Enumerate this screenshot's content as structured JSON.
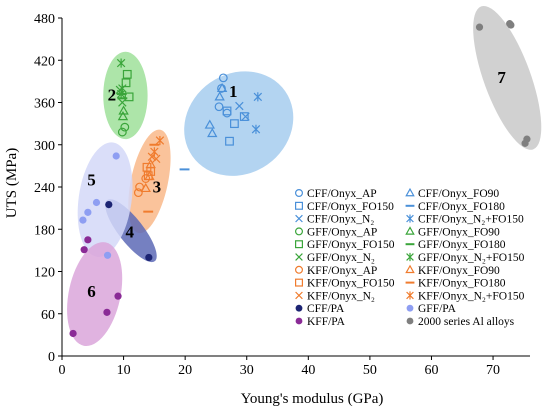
{
  "chart_data": {
    "type": "scatter",
    "xlabel": "Young's modulus (GPa)",
    "ylabel": "UTS (MPa)",
    "xlim": [
      0,
      76
    ],
    "ylim": [
      0,
      480
    ],
    "xticks": [
      0,
      10,
      20,
      30,
      40,
      50,
      60,
      70
    ],
    "yticks": [
      0,
      60,
      120,
      180,
      240,
      300,
      360,
      420,
      480
    ],
    "grid": false,
    "legend_position": "bottom-right",
    "regions": [
      {
        "label": "1",
        "cx": 28.7,
        "cy": 330,
        "rx": 9.2,
        "ry": 71,
        "rot": -35,
        "fill": "#a6cdee"
      },
      {
        "label": "2",
        "cx": 10.3,
        "cy": 370,
        "rx": 3.6,
        "ry": 62,
        "rot": 0,
        "fill": "#9fe09a"
      },
      {
        "label": "3",
        "cx": 14.2,
        "cy": 248,
        "rx": 3.0,
        "ry": 75,
        "rot": 12,
        "fill": "#f9b88a"
      },
      {
        "label": "4",
        "cx": 11.2,
        "cy": 178,
        "rx": 2.0,
        "ry": 55,
        "rot": -38,
        "fill": "#5d6ab6"
      },
      {
        "label": "5",
        "cx": 7.0,
        "cy": 222,
        "rx": 4.3,
        "ry": 82,
        "rot": 8,
        "fill": "#d4d8f8"
      },
      {
        "label": "6",
        "cx": 5.3,
        "cy": 88,
        "rx": 4.2,
        "ry": 75,
        "rot": 12,
        "fill": "#dba6da"
      },
      {
        "label": "7",
        "cx": 72.3,
        "cy": 395,
        "rx": 3.8,
        "ry": 108,
        "rot": -20,
        "fill": "#c9c9c9"
      }
    ],
    "region_labels": [
      {
        "text": "1",
        "x": 27.8,
        "y": 368
      },
      {
        "text": "2",
        "x": 8.1,
        "y": 363
      },
      {
        "text": "3",
        "x": 15.4,
        "y": 232
      },
      {
        "text": "4",
        "x": 11.0,
        "y": 168
      },
      {
        "text": "5",
        "x": 4.8,
        "y": 242
      },
      {
        "text": "6",
        "x": 4.8,
        "y": 84
      },
      {
        "text": "7",
        "x": 71.4,
        "y": 388
      }
    ],
    "series": [
      {
        "name": "CFF/Onyx_AP",
        "color": "#4a90d9",
        "marker": "circle",
        "points": [
          [
            25.5,
            354
          ],
          [
            26.2,
            395
          ],
          [
            26.8,
            345
          ],
          [
            25.9,
            380
          ]
        ]
      },
      {
        "name": "CFF/Onyx_FO90",
        "color": "#4a90d9",
        "marker": "triangle",
        "points": [
          [
            24.0,
            328
          ],
          [
            24.4,
            316
          ],
          [
            25.6,
            368
          ],
          [
            26.0,
            380
          ]
        ]
      },
      {
        "name": "CFF/Onyx_FO150",
        "color": "#4a90d9",
        "marker": "square",
        "points": [
          [
            26.8,
            348
          ],
          [
            27.2,
            305
          ],
          [
            28.0,
            330
          ],
          [
            29.6,
            340
          ]
        ]
      },
      {
        "name": "CFF/Onyx_FO180",
        "color": "#4a90d9",
        "marker": "dash",
        "points": [
          [
            19.9,
            265
          ]
        ]
      },
      {
        "name": "CFF/Onyx_N₂",
        "color": "#4a90d9",
        "marker": "x",
        "points": [
          [
            28.8,
            355
          ],
          [
            29.8,
            340
          ]
        ]
      },
      {
        "name": "CFF/Onyx_N₂+FO150",
        "color": "#4a90d9",
        "marker": "star",
        "points": [
          [
            31.8,
            368
          ],
          [
            31.5,
            322
          ]
        ]
      },
      {
        "name": "GFF/Onyx_AP",
        "color": "#3aa53a",
        "marker": "circle",
        "points": [
          [
            9.8,
            318
          ],
          [
            10.2,
            325
          ]
        ]
      },
      {
        "name": "GFF/Onyx_FO90",
        "color": "#3aa53a",
        "marker": "triangle",
        "points": [
          [
            9.9,
            340
          ],
          [
            10.0,
            348
          ]
        ]
      },
      {
        "name": "GFF/Onyx_FO150",
        "color": "#3aa53a",
        "marker": "square",
        "points": [
          [
            10.6,
            400
          ],
          [
            10.9,
            368
          ],
          [
            10.4,
            388
          ]
        ]
      },
      {
        "name": "GFF/Onyx_FO180",
        "color": "#3aa53a",
        "marker": "dash",
        "points": [
          [
            9.7,
            372
          ],
          [
            9.8,
            366
          ]
        ]
      },
      {
        "name": "GFF/Onyx_N₂",
        "color": "#3aa53a",
        "marker": "x",
        "points": [
          [
            9.4,
            378
          ],
          [
            9.8,
            360
          ]
        ]
      },
      {
        "name": "GFF/Onyx_N₂+FO150",
        "color": "#3aa53a",
        "marker": "star",
        "points": [
          [
            9.6,
            416
          ],
          [
            9.8,
            380
          ],
          [
            9.6,
            372
          ]
        ]
      },
      {
        "name": "KFF/Onyx_AP",
        "color": "#f07c2e",
        "marker": "circle",
        "points": [
          [
            12.4,
            232
          ],
          [
            12.6,
            240
          ],
          [
            13.6,
            252
          ]
        ]
      },
      {
        "name": "KFF/Onyx_FO90",
        "color": "#f07c2e",
        "marker": "triangle",
        "points": [
          [
            13.6,
            238
          ],
          [
            14.2,
            255
          ],
          [
            14.4,
            272
          ]
        ]
      },
      {
        "name": "KFF/Onyx_FO150",
        "color": "#f07c2e",
        "marker": "square",
        "points": [
          [
            13.8,
            268
          ],
          [
            14.0,
            256
          ],
          [
            14.4,
            262
          ]
        ]
      },
      {
        "name": "KFF/Onyx_FO180",
        "color": "#f07c2e",
        "marker": "dash",
        "points": [
          [
            14.0,
            205
          ],
          [
            15.0,
            300
          ]
        ]
      },
      {
        "name": "KFF/Onyx_N₂",
        "color": "#f07c2e",
        "marker": "x",
        "points": [
          [
            14.6,
            283
          ],
          [
            15.3,
            280
          ]
        ]
      },
      {
        "name": "KFF/Onyx_N₂+FO150",
        "color": "#f07c2e",
        "marker": "star",
        "points": [
          [
            15.9,
            306
          ],
          [
            15.0,
            290
          ]
        ]
      },
      {
        "name": "CFF/PA",
        "color": "#1c2473",
        "marker": "filled-circle",
        "points": [
          [
            7.6,
            215
          ],
          [
            14.1,
            140
          ]
        ]
      },
      {
        "name": "GFF/PA",
        "color": "#8e9ef2",
        "marker": "filled-circle",
        "points": [
          [
            3.4,
            193
          ],
          [
            4.2,
            204
          ],
          [
            8.8,
            284
          ],
          [
            7.4,
            143
          ],
          [
            5.6,
            218
          ]
        ]
      },
      {
        "name": "KFF/PA",
        "color": "#8a2b96",
        "marker": "filled-circle",
        "points": [
          [
            1.8,
            32
          ],
          [
            3.6,
            151
          ],
          [
            4.2,
            165
          ],
          [
            7.3,
            62
          ],
          [
            9.1,
            85
          ]
        ]
      },
      {
        "name": "2000 series Al alloys",
        "color": "#7f7f7f",
        "marker": "filled-circle",
        "points": [
          [
            67.8,
            467
          ],
          [
            72.7,
            472
          ],
          [
            72.9,
            470
          ],
          [
            75.5,
            308
          ],
          [
            75.2,
            302
          ]
        ]
      }
    ]
  }
}
